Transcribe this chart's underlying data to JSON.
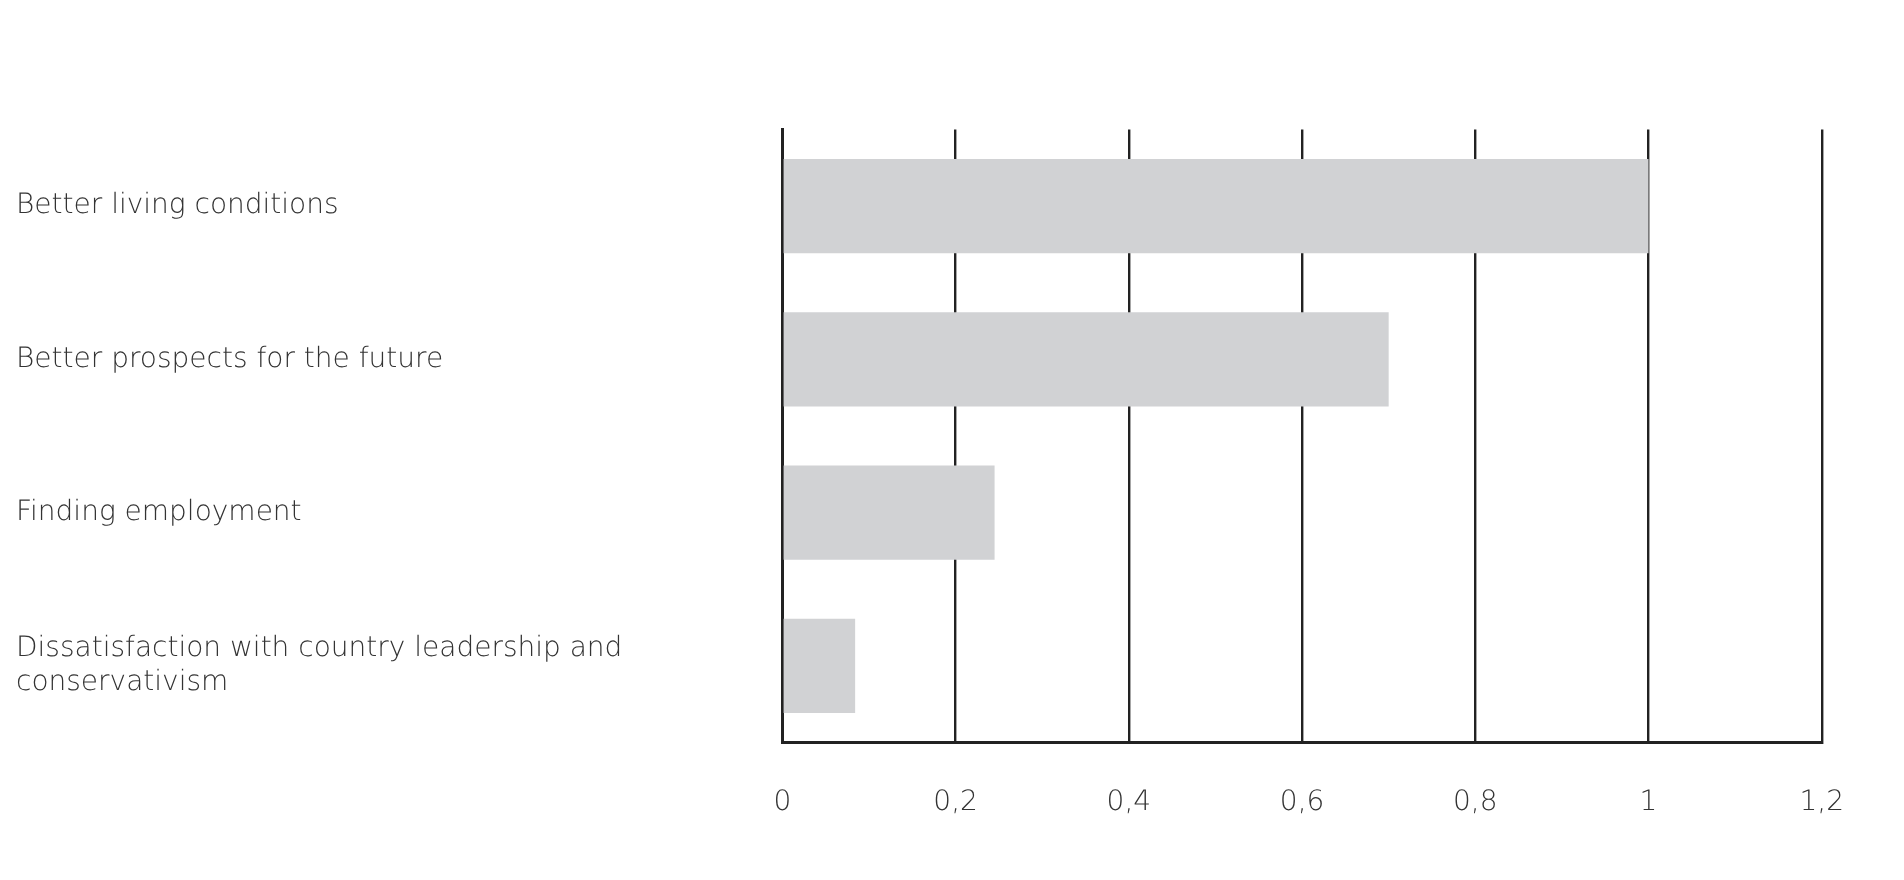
{
  "chart_data": {
    "type": "bar",
    "orientation": "horizontal",
    "categories": [
      "Better living conditions",
      "Better prospects for the future",
      "Finding employment",
      "Dissatisfaction with country leadership and conservativism"
    ],
    "values": [
      1.0,
      0.7,
      0.245,
      0.084
    ],
    "color": "#d1d2d4",
    "xlim": [
      0,
      1.2
    ],
    "xticks": [
      0,
      {
        "value": 0.2,
        "label": "0,2"
      },
      {
        "value": 0.4,
        "label": "0,4"
      },
      {
        "value": 0.6,
        "label": "0,6"
      },
      {
        "value": 0.8,
        "label": "0,8"
      },
      1,
      {
        "value": 1.2,
        "label": "1,2"
      }
    ],
    "grid": "x",
    "legend": false
  }
}
